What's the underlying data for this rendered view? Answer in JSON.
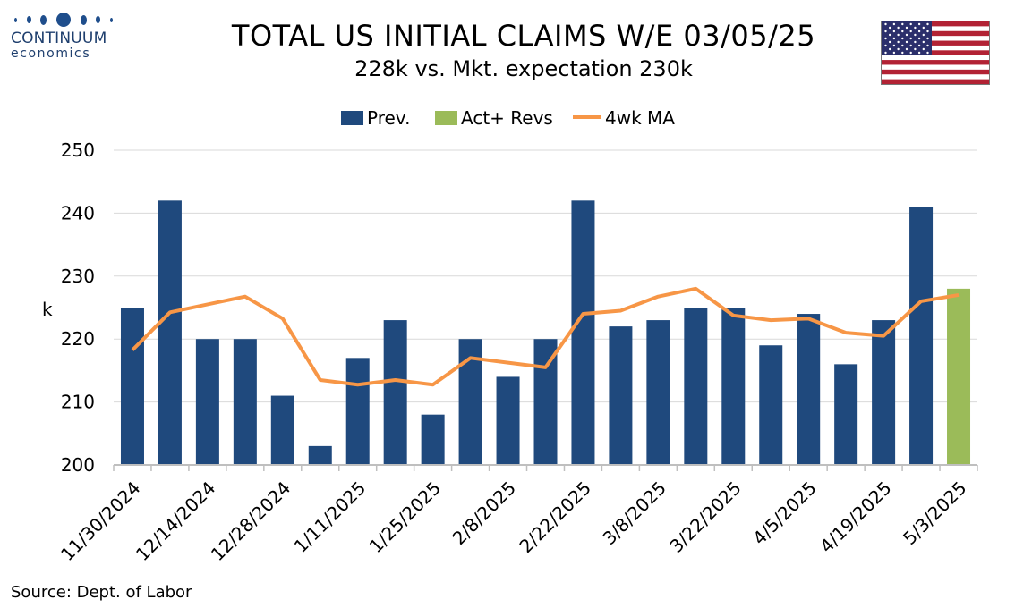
{
  "logo": {
    "name": "CONTINUUM",
    "sub": "economics"
  },
  "title": "TOTAL US INITIAL CLAIMS W/E 03/05/25",
  "subtitle": "228k vs. Mkt. expectation 230k",
  "source": "Source: Dept. of Labor",
  "colors": {
    "prev": "#1f497d",
    "act": "#9bbb59",
    "ma": "#f79646"
  },
  "chart_data": {
    "type": "bar",
    "ylabel": "k",
    "ylim": [
      200,
      250
    ],
    "yticks": [
      200,
      210,
      220,
      230,
      240,
      250
    ],
    "grid": true,
    "legend_position": "top",
    "categories": [
      "11/30/2024",
      "12/7/2024",
      "12/14/2024",
      "12/21/2024",
      "12/28/2024",
      "1/4/2025",
      "1/11/2025",
      "1/18/2025",
      "1/25/2025",
      "2/1/2025",
      "2/8/2025",
      "2/15/2025",
      "2/22/2025",
      "3/1/2025",
      "3/8/2025",
      "3/15/2025",
      "3/22/2025",
      "3/29/2025",
      "4/5/2025",
      "4/12/2025",
      "4/19/2025",
      "4/26/2025",
      "5/3/2025"
    ],
    "tick_labels": [
      "11/30/2024",
      "12/14/2024",
      "12/28/2024",
      "1/11/2025",
      "1/25/2025",
      "2/8/2025",
      "2/22/2025",
      "3/8/2025",
      "3/22/2025",
      "4/5/2025",
      "4/19/2025",
      "5/3/2025"
    ],
    "series": [
      {
        "name": "Prev.",
        "type": "bar",
        "values": [
          225,
          242,
          220,
          220,
          211,
          203,
          217,
          223,
          208,
          220,
          214,
          220,
          242,
          222,
          223,
          225,
          225,
          219,
          224,
          216,
          223,
          241,
          null
        ]
      },
      {
        "name": "Act+ Revs",
        "type": "bar",
        "values": [
          null,
          null,
          null,
          null,
          null,
          null,
          null,
          null,
          null,
          null,
          null,
          null,
          null,
          null,
          null,
          null,
          null,
          null,
          null,
          null,
          null,
          null,
          228
        ]
      },
      {
        "name": "4wk MA",
        "type": "line",
        "values": [
          218.25,
          224.25,
          225.5,
          226.75,
          223.25,
          213.5,
          212.75,
          213.5,
          212.75,
          217,
          216.25,
          215.5,
          224,
          224.5,
          226.75,
          228,
          223.75,
          223,
          223.25,
          221,
          220.5,
          226,
          227
        ]
      }
    ]
  }
}
